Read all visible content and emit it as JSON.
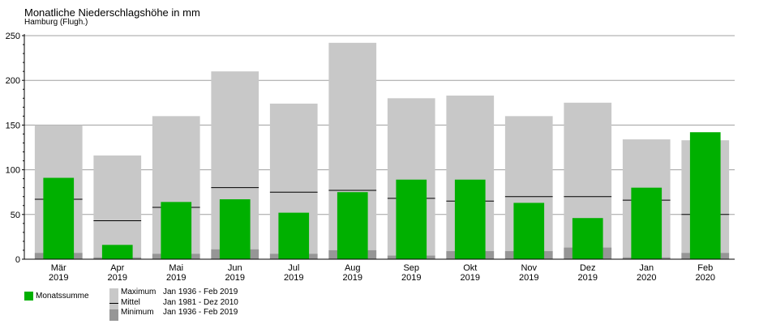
{
  "colors": {
    "monthly": "#00b000",
    "maximum": "#c8c8c8",
    "minimum": "#969696",
    "mean": "#000000",
    "grid": "#a0a0a0"
  },
  "chart_data": {
    "type": "bar",
    "title": "Monatliche Niederschlagshöhe in mm",
    "subtitle": "Hamburg (Flugh.)",
    "ylim": [
      0,
      250
    ],
    "yticks": [
      0,
      50,
      100,
      150,
      200,
      250
    ],
    "grid": true,
    "categories": [
      {
        "month": "Mär",
        "year": "2019"
      },
      {
        "month": "Apr",
        "year": "2019"
      },
      {
        "month": "Mai",
        "year": "2019"
      },
      {
        "month": "Jun",
        "year": "2019"
      },
      {
        "month": "Jul",
        "year": "2019"
      },
      {
        "month": "Aug",
        "year": "2019"
      },
      {
        "month": "Sep",
        "year": "2019"
      },
      {
        "month": "Okt",
        "year": "2019"
      },
      {
        "month": "Nov",
        "year": "2019"
      },
      {
        "month": "Dez",
        "year": "2019"
      },
      {
        "month": "Jan",
        "year": "2020"
      },
      {
        "month": "Feb",
        "year": "2020"
      }
    ],
    "series": [
      {
        "name": "Maximum",
        "period": "Jan 1936 - Feb 2019",
        "values": [
          150,
          116,
          160,
          210,
          174,
          242,
          180,
          183,
          160,
          175,
          134,
          133
        ]
      },
      {
        "name": "Minimum",
        "period": "Jan 1936 - Feb 2019",
        "values": [
          7,
          2,
          6,
          11,
          6,
          10,
          4,
          9,
          9,
          13,
          2,
          7
        ]
      },
      {
        "name": "Mittel",
        "period": "Jan 1981 - Dez 2010",
        "values": [
          67,
          43,
          58,
          80,
          75,
          77,
          68,
          65,
          70,
          70,
          66,
          50
        ]
      },
      {
        "name": "Monatssumme",
        "values": [
          91,
          16,
          64,
          67,
          52,
          75,
          89,
          89,
          63,
          46,
          80,
          142
        ]
      }
    ],
    "legend": {
      "monthly_label": "Monatssumme",
      "items": [
        {
          "label": "Maximum",
          "period": "Jan 1936 - Feb 2019"
        },
        {
          "label": "Mittel",
          "period": "Jan 1981 - Dez 2010"
        },
        {
          "label": "Minimum",
          "period": "Jan 1936 - Feb 2019"
        }
      ]
    }
  }
}
